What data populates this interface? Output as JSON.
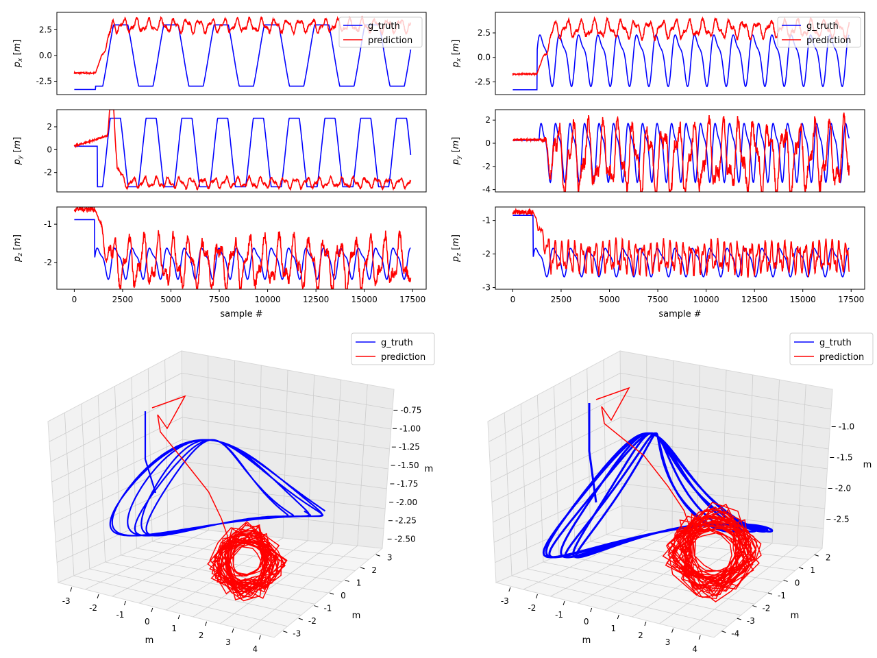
{
  "colors": {
    "truth": "#0000ff",
    "prediction": "#ff0000",
    "axis": "#000000",
    "pane": "#f2f2f2",
    "grid": "#cccccc"
  },
  "legend": {
    "truth": "g_truth",
    "prediction": "prediction"
  },
  "chart_data": [
    {
      "type": "line",
      "panel": "left-px",
      "ylabel": "p_x [m]",
      "xlim": [
        -900,
        18200
      ],
      "ylim": [
        -3.8,
        4.2
      ],
      "yticks": [
        "-2.5",
        "0.0",
        "2.5"
      ],
      "yticks_values": [
        -2.5,
        0,
        2.5
      ],
      "truth": {
        "start": -3.3,
        "flat_end": 1100,
        "period": 2600,
        "amp": 2.98,
        "offset": 0.0,
        "shape": "plateau"
      },
      "prediction": {
        "start": -1.7,
        "flat_end": 1100,
        "mean": 2.9,
        "amp": 0.5,
        "period": 650
      },
      "legend_position": "upper right",
      "show_xticks": false
    },
    {
      "type": "line",
      "panel": "left-py",
      "ylabel": "p_y [m]",
      "xlim": [
        -900,
        18200
      ],
      "ylim": [
        -3.7,
        3.5
      ],
      "yticks": [
        "-2",
        "0",
        "2"
      ],
      "yticks_values": [
        -2,
        0,
        2
      ],
      "truth": {
        "start": 0.3,
        "flat_end": 1200,
        "period": 1850,
        "amp": 3.0,
        "offset": -0.25,
        "shape": "plateau"
      },
      "prediction": {
        "start": 0.3,
        "flat_end": 1700,
        "mean": -2.9,
        "amp": 0.35,
        "period": 600,
        "bump": 3.1
      },
      "show_xticks": false
    },
    {
      "type": "line",
      "panel": "left-pz",
      "ylabel": "p_z [m]",
      "xlim": [
        -900,
        18200
      ],
      "ylim": [
        -2.7,
        -0.55
      ],
      "yticks": [
        "-2",
        "-1"
      ],
      "yticks_values": [
        -2,
        -1
      ],
      "truth": {
        "start": -0.88,
        "flat_end": 1050,
        "period": 900,
        "amp": 0.48,
        "offset": -1.98,
        "shape": "sine"
      },
      "prediction": {
        "start": -0.6,
        "flat_end": 1050,
        "mean": -2.0,
        "amp": 0.5,
        "period": 780
      },
      "xticks": [
        "0",
        "2500",
        "5000",
        "7500",
        "10000",
        "12500",
        "15000",
        "17500"
      ],
      "xticks_values": [
        0,
        2500,
        5000,
        7500,
        10000,
        12500,
        15000,
        17500
      ],
      "xlabel": "sample #",
      "show_xticks": true
    },
    {
      "type": "line",
      "panel": "right-px",
      "ylabel": "p_x [m]",
      "xlim": [
        -900,
        18200
      ],
      "ylim": [
        -3.8,
        4.6
      ],
      "yticks": [
        "-2.5",
        "0.0",
        "2.5"
      ],
      "yticks_values": [
        -2.5,
        0,
        2.5
      ],
      "truth": {
        "start": -3.3,
        "flat_end": 1250,
        "period": 1000,
        "amp": 3.1,
        "offset": 0.0,
        "shape": "sine"
      },
      "prediction": {
        "start": -1.7,
        "flat_end": 1250,
        "mean": 2.9,
        "amp": 0.7,
        "period": 700
      },
      "legend_position": "upper right",
      "show_xticks": false
    },
    {
      "type": "line",
      "panel": "right-py",
      "ylabel": "p_y [m]",
      "xlim": [
        -900,
        18200
      ],
      "ylim": [
        -4.2,
        2.9
      ],
      "yticks": [
        "-4",
        "-2",
        "0",
        "2"
      ],
      "yticks_values": [
        -4,
        -2,
        0,
        2
      ],
      "truth": {
        "start": 0.25,
        "flat_end": 1350,
        "period": 750,
        "amp": 3.0,
        "offset": -0.5,
        "shape": "sine"
      },
      "prediction": {
        "start": 0.3,
        "flat_end": 1350,
        "mean": -1.2,
        "amp": 2.3,
        "period": 780
      },
      "show_xticks": false
    },
    {
      "type": "line",
      "panel": "right-pz",
      "ylabel": "p_z [m]",
      "xlim": [
        -900,
        18200
      ],
      "ylim": [
        -3.05,
        -0.6
      ],
      "yticks": [
        "-3",
        "-2",
        "-1"
      ],
      "yticks_values": [
        -3,
        -2,
        -1
      ],
      "truth": {
        "start": -0.85,
        "flat_end": 1050,
        "period": 900,
        "amp": 0.5,
        "offset": -2.2,
        "shape": "sine"
      },
      "prediction": {
        "start": -0.75,
        "flat_end": 1050,
        "mean": -2.1,
        "amp": 0.35,
        "period": 350
      },
      "xticks": [
        "0",
        "2500",
        "5000",
        "7500",
        "10000",
        "12500",
        "15000",
        "17500"
      ],
      "xticks_values": [
        0,
        2500,
        5000,
        7500,
        10000,
        12500,
        15000,
        17500
      ],
      "xlabel": "sample #",
      "show_xticks": true
    },
    {
      "type": "line3d",
      "panel": "left-3d",
      "xlabel": "m",
      "ylabel": "m",
      "zlabel": "m",
      "xticks": [
        "-3",
        "-2",
        "-1",
        "0",
        "1",
        "2",
        "3",
        "4"
      ],
      "yticks": [
        "-3",
        "-2",
        "-1",
        "0",
        "1",
        "2",
        "3"
      ],
      "zticks": [
        "-0.75",
        "-1.00",
        "-1.25",
        "-1.50",
        "-1.75",
        "-2.00",
        "-2.25",
        "-2.50"
      ],
      "legend_position": "upper right"
    },
    {
      "type": "line3d",
      "panel": "right-3d",
      "xlabel": "m",
      "ylabel": "m",
      "zlabel": "m",
      "xticks": [
        "-3",
        "-2",
        "-1",
        "0",
        "1",
        "2",
        "3",
        "4"
      ],
      "yticks": [
        "-4",
        "-3",
        "-2",
        "-1",
        "0",
        "1",
        "2"
      ],
      "zticks": [
        "-1.0",
        "-1.5",
        "-2.0",
        "-2.5"
      ],
      "legend_position": "upper right"
    }
  ]
}
